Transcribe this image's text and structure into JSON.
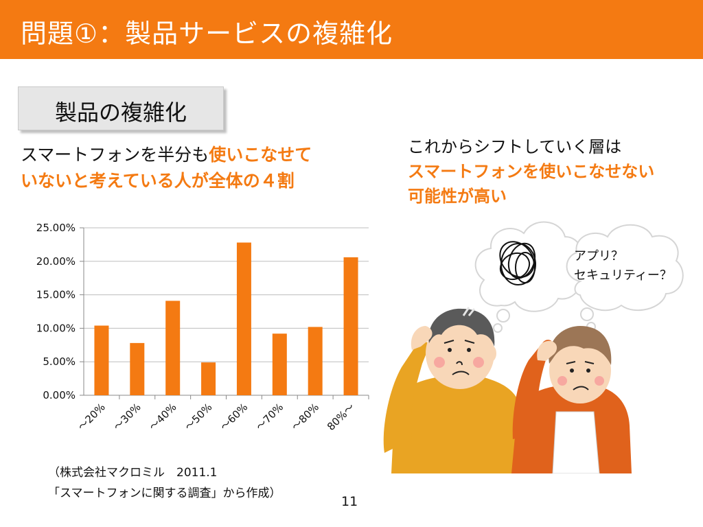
{
  "slide": {
    "title": "問題①：製品サービスの複雑化",
    "section_label": "製品の複雑化",
    "left_text_plain": "スマートフォンを半分も",
    "left_text_highlight_1": "使いこなせて",
    "left_text_highlight_2": "いないと考えている人が全体の４割",
    "right_text_line1": "これからシフトしていく層は",
    "right_text_line2": "スマートフォンを使いこなせない",
    "right_text_line3": "可能性が高い",
    "bubble_line1": "アプリ？",
    "bubble_line2": "セキュリティー？",
    "source_line1": "（株式会社マクロミル　2011.1",
    "source_line2": "「スマートフォンに関する調査」から作成）",
    "page_number": "11"
  },
  "colors": {
    "accent": "#F47A12",
    "section_box": "#E6E6E6"
  },
  "chart_data": {
    "type": "bar",
    "categories": [
      "～20%",
      "～30%",
      "～40%",
      "～50%",
      "～60%",
      "～70%",
      "～80%",
      "80%～"
    ],
    "values": [
      10.4,
      7.8,
      14.1,
      4.9,
      22.8,
      9.2,
      10.2,
      20.6
    ],
    "y_ticks": [
      "0.00%",
      "5.00%",
      "10.00%",
      "15.00%",
      "20.00%",
      "25.00%"
    ],
    "ylim": [
      0,
      25
    ],
    "grid": true,
    "legend": "none",
    "bar_color": "#F47A12"
  }
}
